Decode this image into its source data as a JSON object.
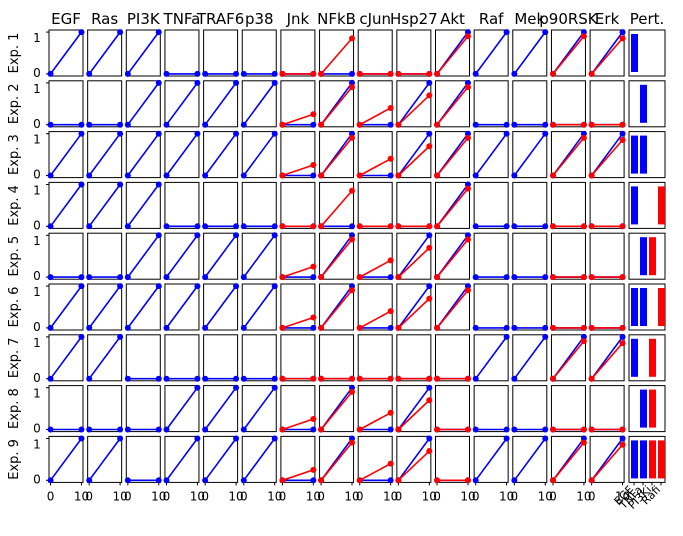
{
  "chart_data": {
    "type": "line",
    "columns": [
      "EGF",
      "Ras",
      "PI3K",
      "TNFa",
      "TRAF6",
      "p38",
      "Jnk",
      "NFkB",
      "cJun",
      "Hsp27",
      "Akt",
      "Raf",
      "Mek",
      "p90RSK",
      "Erk"
    ],
    "perturbation_title": "Pert.",
    "rows": [
      "Exp. 1",
      "Exp. 2",
      "Exp. 3",
      "Exp. 4",
      "Exp. 5",
      "Exp. 6",
      "Exp. 7",
      "Exp. 8",
      "Exp. 9"
    ],
    "x": [
      0,
      10
    ],
    "x_tick_labels": [
      "0",
      "10"
    ],
    "y_tick_labels": [
      "0",
      "1"
    ],
    "ylim": [
      0,
      1.05
    ],
    "xlim": [
      -0.5,
      10.5
    ],
    "series_colors": {
      "blue": "#0000ff",
      "red": "#ff0000"
    },
    "columns_with_red": [
      "Jnk",
      "NFkB",
      "cJun",
      "Hsp27",
      "Akt",
      "p90RSK",
      "Erk"
    ],
    "blue_end": [
      [
        1,
        1,
        1,
        0,
        0,
        0,
        0,
        0,
        0,
        0,
        1,
        1,
        1,
        1,
        1
      ],
      [
        0,
        0,
        1,
        1,
        1,
        1,
        0,
        1,
        0,
        1,
        1,
        0,
        0,
        0,
        0
      ],
      [
        1,
        1,
        1,
        1,
        1,
        1,
        0,
        1,
        0,
        1,
        1,
        1,
        1,
        1,
        1
      ],
      [
        1,
        1,
        1,
        0,
        0,
        0,
        0,
        0,
        0,
        0,
        1,
        0,
        0,
        0,
        0
      ],
      [
        0,
        0,
        1,
        1,
        1,
        1,
        0,
        1,
        0,
        1,
        1,
        0,
        0,
        0,
        0
      ],
      [
        1,
        1,
        1,
        1,
        1,
        1,
        0,
        1,
        0,
        1,
        1,
        0,
        0,
        0,
        0
      ],
      [
        1,
        1,
        0,
        0,
        0,
        0,
        0,
        0,
        0,
        0,
        0,
        1,
        1,
        1,
        1
      ],
      [
        0,
        0,
        0,
        1,
        1,
        1,
        0,
        1,
        0,
        1,
        0,
        0,
        0,
        0,
        0
      ],
      [
        1,
        1,
        0,
        1,
        1,
        1,
        0,
        1,
        0,
        1,
        0,
        1,
        1,
        1,
        1
      ]
    ],
    "red_end": [
      [
        null,
        null,
        null,
        null,
        null,
        null,
        0,
        0.85,
        0,
        0,
        0.9,
        null,
        null,
        0.9,
        0.85
      ],
      [
        null,
        null,
        null,
        null,
        null,
        null,
        0.25,
        0.9,
        0.4,
        0.7,
        0.9,
        null,
        null,
        0,
        0
      ],
      [
        null,
        null,
        null,
        null,
        null,
        null,
        0.25,
        0.9,
        0.4,
        0.7,
        0.9,
        null,
        null,
        0.9,
        0.85
      ],
      [
        null,
        null,
        null,
        null,
        null,
        null,
        0,
        0.85,
        0,
        0,
        0.9,
        null,
        null,
        0,
        0
      ],
      [
        null,
        null,
        null,
        null,
        null,
        null,
        0.25,
        0.9,
        0.4,
        0.7,
        0.9,
        null,
        null,
        0,
        0
      ],
      [
        null,
        null,
        null,
        null,
        null,
        null,
        0.25,
        0.9,
        0.4,
        0.7,
        0.9,
        null,
        null,
        0,
        0
      ],
      [
        null,
        null,
        null,
        null,
        null,
        null,
        0,
        0,
        0,
        0,
        0,
        null,
        null,
        0.9,
        0.85
      ],
      [
        null,
        null,
        null,
        null,
        null,
        null,
        0.25,
        0.9,
        0.4,
        0.7,
        0,
        null,
        null,
        0,
        0
      ],
      [
        null,
        null,
        null,
        null,
        null,
        null,
        0.25,
        0.9,
        0.4,
        0.7,
        0,
        null,
        null,
        0.9,
        0.85
      ]
    ],
    "perturbation": {
      "type": "bar",
      "categories": [
        "EGF",
        "TNFa",
        "PI3Ki",
        "Rafi"
      ],
      "colors": [
        "#0000ff",
        "#0000ff",
        "#ff0000",
        "#ff0000"
      ],
      "values": [
        [
          1,
          0,
          0,
          0
        ],
        [
          0,
          1,
          0,
          0
        ],
        [
          1,
          1,
          0,
          0
        ],
        [
          1,
          0,
          0,
          1
        ],
        [
          0,
          1,
          1,
          0
        ],
        [
          1,
          1,
          0,
          1
        ],
        [
          1,
          0,
          1,
          0
        ],
        [
          0,
          1,
          1,
          0
        ],
        [
          1,
          1,
          1,
          1
        ]
      ]
    }
  }
}
